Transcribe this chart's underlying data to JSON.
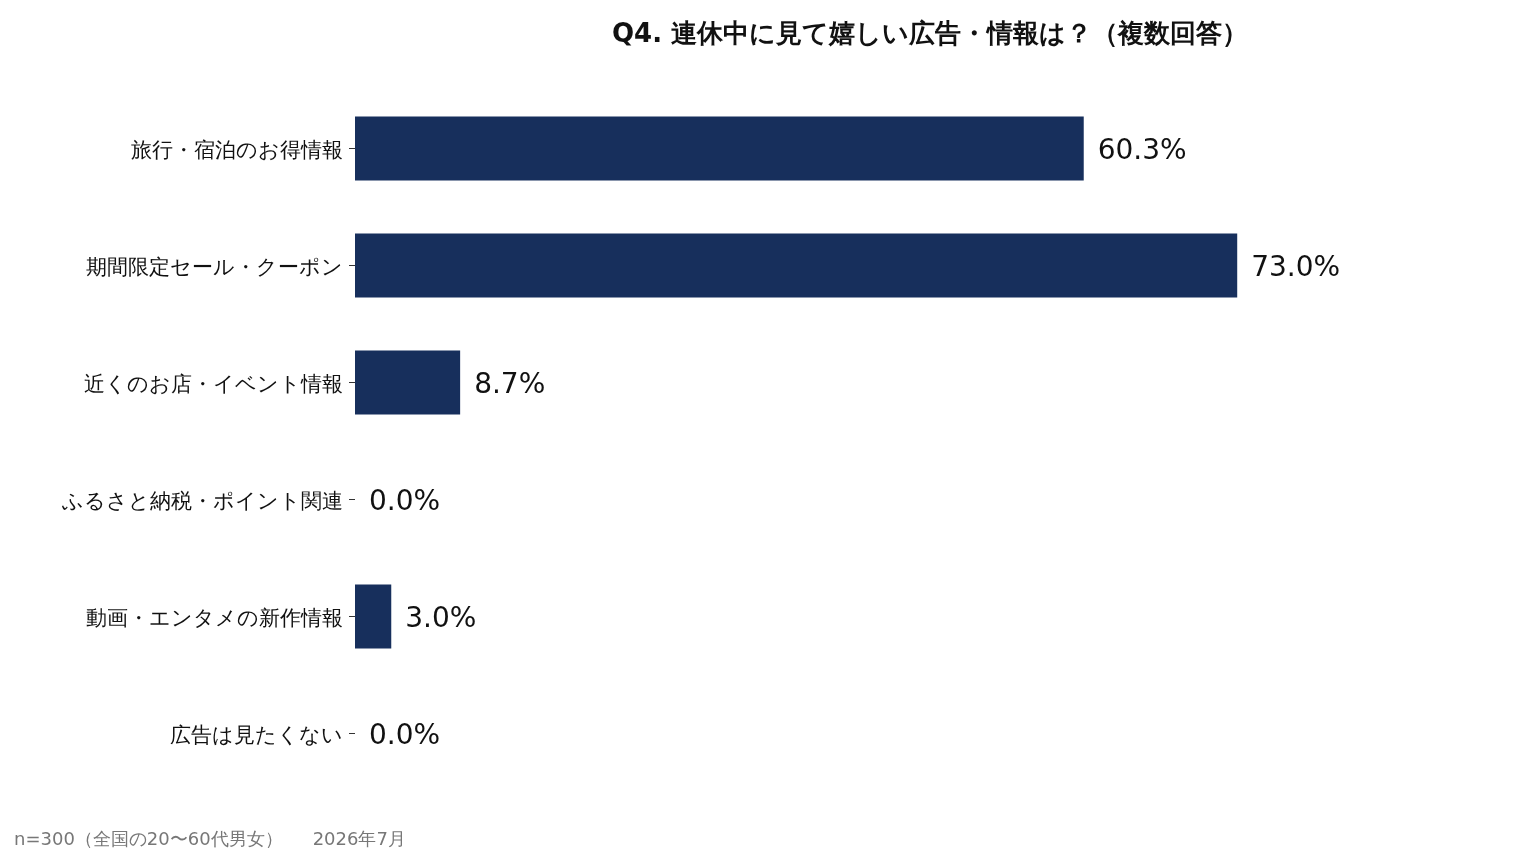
{
  "chart_data": {
    "type": "bar",
    "orientation": "horizontal",
    "title": "Q4. 連休中に見て嬉しい広告・情報は？（複数回答）",
    "categories": [
      "旅行・宿泊のお得情報",
      "期間限定セール・クーポン",
      "近くのお店・イベント情報",
      "ふるさと納税・ポイント関連",
      "動画・エンタメの新作情報",
      "広告は見たくない"
    ],
    "values": [
      60.3,
      73.0,
      8.7,
      0.0,
      3.0,
      0.0
    ],
    "value_labels": [
      "60.3%",
      "73.0%",
      "8.7%",
      "0.0%",
      "3.0%",
      "0.0%"
    ],
    "color": "#172f5c",
    "annotations": [
      "n=300（全国の20〜60代男女）",
      "2026年7月"
    ]
  }
}
